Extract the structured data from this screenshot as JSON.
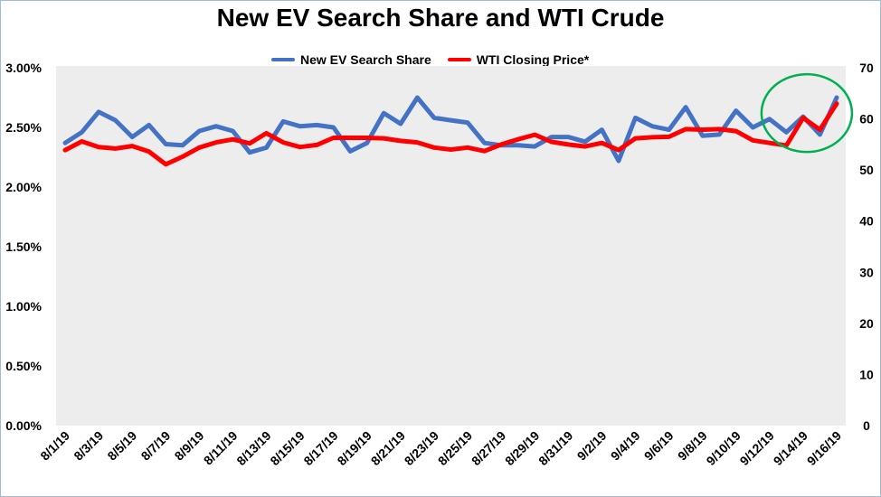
{
  "chart_data": {
    "type": "line",
    "title": "New EV Search Share and WTI Crude",
    "categories": [
      "8/1/19",
      "8/2/19",
      "8/3/19",
      "8/4/19",
      "8/5/19",
      "8/6/19",
      "8/7/19",
      "8/8/19",
      "8/9/19",
      "8/10/19",
      "8/11/19",
      "8/12/19",
      "8/13/19",
      "8/14/19",
      "8/15/19",
      "8/16/19",
      "8/17/19",
      "8/18/19",
      "8/19/19",
      "8/20/19",
      "8/21/19",
      "8/22/19",
      "8/23/19",
      "8/24/19",
      "8/25/19",
      "8/26/19",
      "8/27/19",
      "8/28/19",
      "8/29/19",
      "8/30/19",
      "8/31/19",
      "9/1/19",
      "9/2/19",
      "9/3/19",
      "9/4/19",
      "9/5/19",
      "9/6/19",
      "9/7/19",
      "9/8/19",
      "9/9/19",
      "9/10/19",
      "9/11/19",
      "9/12/19",
      "9/13/19",
      "9/14/19",
      "9/15/19",
      "9/16/19"
    ],
    "x_tick_labels": [
      "8/1/19",
      "8/3/19",
      "8/5/19",
      "8/7/19",
      "8/9/19",
      "8/11/19",
      "8/13/19",
      "8/15/19",
      "8/17/19",
      "8/19/19",
      "8/21/19",
      "8/23/19",
      "8/25/19",
      "8/27/19",
      "8/29/19",
      "8/31/19",
      "9/2/19",
      "9/4/19",
      "9/6/19",
      "9/8/19",
      "9/10/19",
      "9/12/19",
      "9/14/19",
      "9/16/19"
    ],
    "y_left": {
      "min": 0,
      "max": 3.0,
      "ticks": [
        "0.00%",
        "0.50%",
        "1.00%",
        "1.50%",
        "2.00%",
        "2.50%",
        "3.00%"
      ],
      "tick_values": [
        0,
        0.5,
        1.0,
        1.5,
        2.0,
        2.5,
        3.0
      ]
    },
    "y_right": {
      "min": 0,
      "max": 70,
      "ticks": [
        "0",
        "10",
        "20",
        "30",
        "40",
        "50",
        "60",
        "70"
      ],
      "tick_values": [
        0,
        10,
        20,
        30,
        40,
        50,
        60,
        70
      ]
    },
    "series": [
      {
        "name": "New EV Search Share",
        "axis": "left",
        "color": "#4472c4",
        "unit": "%",
        "values": [
          2.37,
          2.46,
          2.63,
          2.56,
          2.42,
          2.52,
          2.36,
          2.35,
          2.47,
          2.51,
          2.47,
          2.29,
          2.33,
          2.55,
          2.51,
          2.52,
          2.5,
          2.3,
          2.37,
          2.62,
          2.53,
          2.75,
          2.58,
          2.56,
          2.54,
          2.37,
          2.35,
          2.35,
          2.34,
          2.42,
          2.42,
          2.38,
          2.48,
          2.22,
          2.58,
          2.51,
          2.48,
          2.67,
          2.43,
          2.44,
          2.64,
          2.5,
          2.57,
          2.46,
          2.59,
          2.44,
          2.75
        ]
      },
      {
        "name": "WTI Closing Price*",
        "axis": "right",
        "color": "#ff0000",
        "unit": "$",
        "values": [
          53.9,
          55.6,
          54.5,
          54.2,
          54.7,
          53.6,
          51.1,
          52.6,
          54.4,
          55.4,
          56.0,
          55.2,
          57.2,
          55.4,
          54.5,
          54.9,
          56.3,
          56.3,
          56.3,
          56.2,
          55.7,
          55.4,
          54.4,
          54.0,
          54.4,
          53.7,
          55.0,
          56.0,
          56.9,
          55.5,
          55.0,
          54.6,
          55.3,
          53.9,
          56.2,
          56.4,
          56.5,
          58.0,
          57.9,
          58.0,
          57.6,
          55.8,
          55.3,
          54.8,
          60.2,
          57.9,
          63.0
        ]
      }
    ],
    "legend_position": "top",
    "annotation": {
      "type": "circle",
      "color": "#00b050"
    }
  }
}
